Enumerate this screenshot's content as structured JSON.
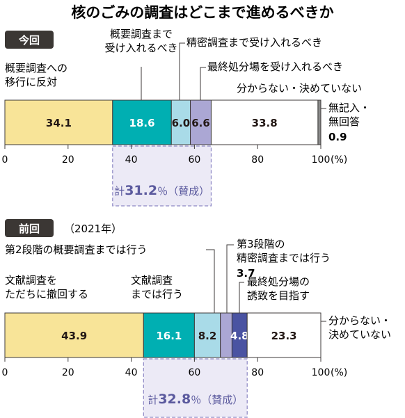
{
  "title": "核のごみの調査はどこまで進めるべきか",
  "colors": {
    "text": "#231815",
    "badge_bg": "#3b3734",
    "sum_text": "#5b5a9e",
    "sum_box_fill": "#eceaf6",
    "sum_box_stroke": "#8c86c4"
  },
  "chart_data": [
    {
      "type": "bar",
      "orientation": "horizontal-stacked",
      "badge": "今回",
      "subtitle": "",
      "xlim": [
        0,
        100
      ],
      "x_ticks": [
        "0",
        "20",
        "40",
        "60",
        "80",
        "100"
      ],
      "x_unit": "(%)",
      "series": [
        {
          "name": "概要調査への移行に反対",
          "label_lines": [
            "概要調査への",
            "移行に反対"
          ],
          "value": 34.1,
          "value_text": "34.1",
          "color": "#f8e498",
          "text_color": "#231815"
        },
        {
          "name": "概要調査まで受け入れるべき",
          "label_lines": [
            "概要調査まで",
            "受け入れるべき"
          ],
          "value": 18.6,
          "value_text": "18.6",
          "color": "#00afb2",
          "text_color": "#ffffff"
        },
        {
          "name": "精密調査まで受け入れるべき",
          "label_lines": [
            "精密調査まで受け入れるべき"
          ],
          "value": 6.0,
          "value_text": "6.0",
          "color": "#a9dbe8",
          "text_color": "#231815"
        },
        {
          "name": "最終処分場を受け入れるべき",
          "label_lines": [
            "最終処分場を受け入れるべき"
          ],
          "value": 6.6,
          "value_text": "6.6",
          "color": "#aba7d4",
          "text_color": "#231815"
        },
        {
          "name": "分からない・決めていない",
          "label_lines": [
            "分からない・決めていない"
          ],
          "value": 33.8,
          "value_text": "33.8",
          "color": "#ffffff",
          "text_color": "#231815"
        },
        {
          "name": "無記入・無回答",
          "label_lines": [
            "無記入・",
            "無回答"
          ],
          "value": 0.9,
          "value_text": "0.9",
          "color": "#8a8a8a",
          "text_color": "#231815"
        }
      ],
      "sum": {
        "prefix": "計",
        "value": "31.2",
        "suffix": "％（賛成）",
        "range": [
          34.1,
          65.3
        ]
      }
    },
    {
      "type": "bar",
      "orientation": "horizontal-stacked",
      "badge": "前回",
      "subtitle": "（2021年）",
      "xlim": [
        0,
        100
      ],
      "x_ticks": [
        "0",
        "20",
        "40",
        "60",
        "80",
        "100"
      ],
      "x_unit": "(%)",
      "series": [
        {
          "name": "文献調査をただちに撤回する",
          "label_lines": [
            "文献調査を",
            "ただちに撤回する"
          ],
          "value": 43.9,
          "value_text": "43.9",
          "color": "#f8e498",
          "text_color": "#231815"
        },
        {
          "name": "第2段階の概要調査までは行う",
          "label_lines": [
            "第2段階の概要調査までは行う"
          ],
          "value": 16.1,
          "value_text": "16.1",
          "color": "#00afb2",
          "text_color": "#ffffff"
        },
        {
          "name": "文献調査までは行う",
          "label_lines": [
            "文献調査",
            "までは行う"
          ],
          "value": 8.2,
          "value_text": "8.2",
          "color": "#a9dbe8",
          "text_color": "#231815"
        },
        {
          "name": "第3段階の精密調査までは行う",
          "label_lines": [
            "第3段階の",
            "精密調査までは行う"
          ],
          "value": 3.7,
          "value_text": "3.7",
          "color": "#aba7d4",
          "text_color": "#231815"
        },
        {
          "name": "最終処分場の誘致を目指す",
          "label_lines": [
            "最終処分場の",
            "誘致を目指す"
          ],
          "value": 4.8,
          "value_text": "4.8",
          "color": "#4a53a2",
          "text_color": "#ffffff"
        },
        {
          "name": "分からない・決めていない",
          "label_lines": [
            "分からない・",
            "決めていない"
          ],
          "value": 23.3,
          "value_text": "23.3",
          "color": "#ffffff",
          "text_color": "#231815"
        }
      ],
      "sum": {
        "prefix": "計",
        "value": "32.8",
        "suffix": "％（賛成）",
        "range": [
          43.9,
          76.7
        ]
      }
    }
  ]
}
